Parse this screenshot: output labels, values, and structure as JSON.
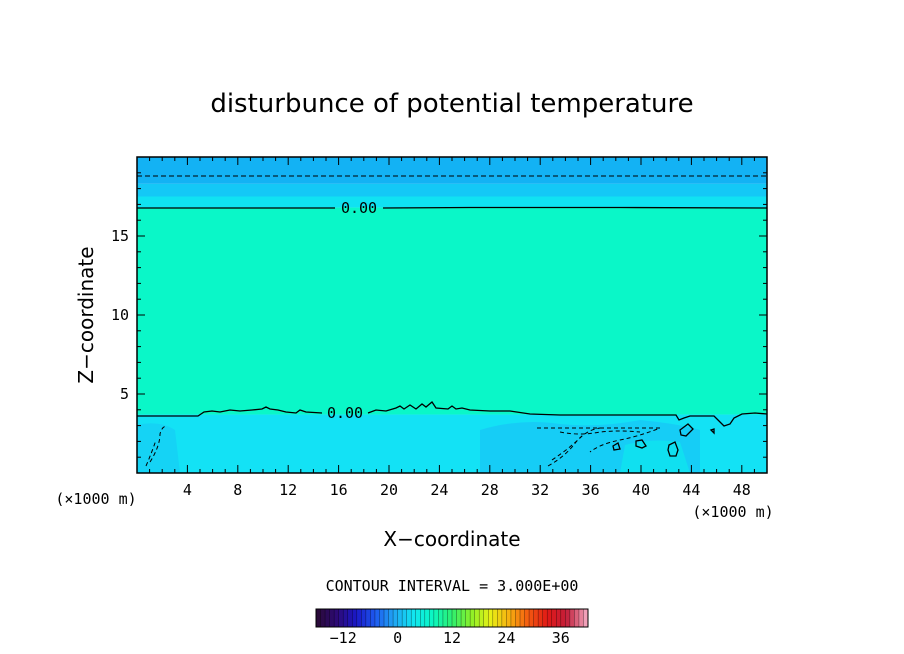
{
  "chart_data": {
    "type": "heatmap",
    "title": "disturbunce of potential temperature",
    "xlabel": "X−coordinate",
    "ylabel": "Z−coordinate",
    "x_unit": "(×1000 m)",
    "y_unit": "(×1000 m)",
    "xlim": [
      0,
      50
    ],
    "ylim": [
      0,
      20
    ],
    "x_ticks": [
      4,
      8,
      12,
      16,
      20,
      24,
      28,
      32,
      36,
      40,
      44,
      48
    ],
    "x_tick_labels": [
      "4",
      "8",
      "12",
      "16",
      "20",
      "24",
      "28",
      "32",
      "36",
      "40",
      "44",
      "48"
    ],
    "y_ticks": [
      5,
      10,
      15
    ],
    "y_tick_labels": [
      "5",
      "10",
      "15"
    ],
    "contour_interval_text": "CONTOUR INTERVAL = 3.000E+00",
    "contour_labels": [
      {
        "text": "0.00",
        "x": 17.3,
        "z": 16.8
      },
      {
        "text": "0.00",
        "x": 16.8,
        "z": 3.7
      }
    ],
    "regions": [
      {
        "z_from": 18.3,
        "z_to": 20.0,
        "value": -6,
        "color": "#13b2f4"
      },
      {
        "z_from": 17.5,
        "z_to": 18.3,
        "value": -4,
        "color": "#14c8f6"
      },
      {
        "z_from": 16.8,
        "z_to": 17.5,
        "value": -2,
        "color": "#10e2f2"
      },
      {
        "z_from": 3.7,
        "z_to": 16.8,
        "value": 1,
        "color": "#0af7c8"
      },
      {
        "z_from": 0.0,
        "z_to": 3.7,
        "value": -2,
        "color": "#13e2f5"
      }
    ],
    "colorbar": {
      "min": -18,
      "max": 42,
      "tick_values": [
        -12,
        0,
        12,
        24,
        36
      ],
      "tick_labels": [
        "−12",
        "0",
        "12",
        "24",
        "36"
      ],
      "colormap": [
        "#2a0a3a",
        "#2d0a78",
        "#1a18c8",
        "#1e5cf0",
        "#1fa8f4",
        "#12e6f0",
        "#0af7c2",
        "#2ef070",
        "#8cf028",
        "#e8f016",
        "#f7b010",
        "#f45a10",
        "#e01816",
        "#c21e3a",
        "#f0a0b8"
      ]
    }
  }
}
